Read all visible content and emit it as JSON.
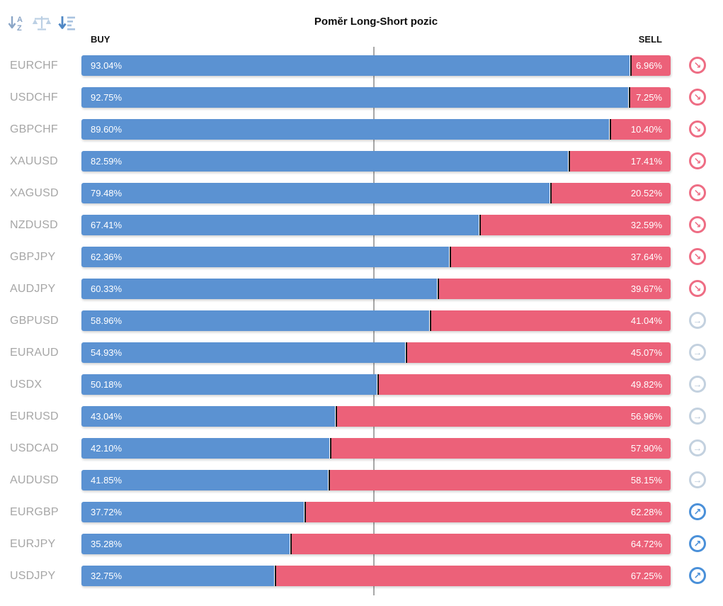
{
  "title": "Pomĕr Long-Short pozic",
  "columns": {
    "buy": "BUY",
    "sell": "SELL"
  },
  "toolbar": {
    "icons": [
      "sort-alphabetical-icon",
      "balance-scale-icon",
      "sort-by-value-icon"
    ]
  },
  "trend_arrows": {
    "down": "↘",
    "flat": "→",
    "up": "↗"
  },
  "colors": {
    "buy_bar": "#5b92d2",
    "sell_bar": "#ec6179",
    "trend_down_icon": "#ee6d84",
    "trend_flat_icon": "#c3d1df",
    "trend_up_icon": "#4a90d9",
    "pair_label": "#a6a6a6",
    "midline": "#a8a8a8"
  },
  "rows": [
    {
      "pair": "EURCHF",
      "buy": 93.04,
      "sell": 6.96,
      "buy_label": "93.04%",
      "sell_label": "6.96%",
      "trend": "down"
    },
    {
      "pair": "USDCHF",
      "buy": 92.75,
      "sell": 7.25,
      "buy_label": "92.75%",
      "sell_label": "7.25%",
      "trend": "down"
    },
    {
      "pair": "GBPCHF",
      "buy": 89.6,
      "sell": 10.4,
      "buy_label": "89.60%",
      "sell_label": "10.40%",
      "trend": "down"
    },
    {
      "pair": "XAUUSD",
      "buy": 82.59,
      "sell": 17.41,
      "buy_label": "82.59%",
      "sell_label": "17.41%",
      "trend": "down"
    },
    {
      "pair": "XAGUSD",
      "buy": 79.48,
      "sell": 20.52,
      "buy_label": "79.48%",
      "sell_label": "20.52%",
      "trend": "down"
    },
    {
      "pair": "NZDUSD",
      "buy": 67.41,
      "sell": 32.59,
      "buy_label": "67.41%",
      "sell_label": "32.59%",
      "trend": "down"
    },
    {
      "pair": "GBPJPY",
      "buy": 62.36,
      "sell": 37.64,
      "buy_label": "62.36%",
      "sell_label": "37.64%",
      "trend": "down"
    },
    {
      "pair": "AUDJPY",
      "buy": 60.33,
      "sell": 39.67,
      "buy_label": "60.33%",
      "sell_label": "39.67%",
      "trend": "down"
    },
    {
      "pair": "GBPUSD",
      "buy": 58.96,
      "sell": 41.04,
      "buy_label": "58.96%",
      "sell_label": "41.04%",
      "trend": "flat"
    },
    {
      "pair": "EURAUD",
      "buy": 54.93,
      "sell": 45.07,
      "buy_label": "54.93%",
      "sell_label": "45.07%",
      "trend": "flat"
    },
    {
      "pair": "USDX",
      "buy": 50.18,
      "sell": 49.82,
      "buy_label": "50.18%",
      "sell_label": "49.82%",
      "trend": "flat"
    },
    {
      "pair": "EURUSD",
      "buy": 43.04,
      "sell": 56.96,
      "buy_label": "43.04%",
      "sell_label": "56.96%",
      "trend": "flat"
    },
    {
      "pair": "USDCAD",
      "buy": 42.1,
      "sell": 57.9,
      "buy_label": "42.10%",
      "sell_label": "57.90%",
      "trend": "flat"
    },
    {
      "pair": "AUDUSD",
      "buy": 41.85,
      "sell": 58.15,
      "buy_label": "41.85%",
      "sell_label": "58.15%",
      "trend": "flat"
    },
    {
      "pair": "EURGBP",
      "buy": 37.72,
      "sell": 62.28,
      "buy_label": "37.72%",
      "sell_label": "62.28%",
      "trend": "up"
    },
    {
      "pair": "EURJPY",
      "buy": 35.28,
      "sell": 64.72,
      "buy_label": "35.28%",
      "sell_label": "64.72%",
      "trend": "up"
    },
    {
      "pair": "USDJPY",
      "buy": 32.75,
      "sell": 67.25,
      "buy_label": "32.75%",
      "sell_label": "67.25%",
      "trend": "up"
    }
  ],
  "chart_data": {
    "type": "bar",
    "subtype": "horizontal-stacked",
    "title": "Pomĕr Long-Short pozic",
    "categories": [
      "EURCHF",
      "USDCHF",
      "GBPCHF",
      "XAUUSD",
      "XAGUSD",
      "NZDUSD",
      "GBPJPY",
      "AUDJPY",
      "GBPUSD",
      "EURAUD",
      "USDX",
      "EURUSD",
      "USDCAD",
      "AUDUSD",
      "EURGBP",
      "EURJPY",
      "USDJPY"
    ],
    "series": [
      {
        "name": "BUY",
        "color": "#5b92d2",
        "values": [
          93.04,
          92.75,
          89.6,
          82.59,
          79.48,
          67.41,
          62.36,
          60.33,
          58.96,
          54.93,
          50.18,
          43.04,
          42.1,
          41.85,
          37.72,
          35.28,
          32.75
        ]
      },
      {
        "name": "SELL",
        "color": "#ec6179",
        "values": [
          6.96,
          7.25,
          10.4,
          17.41,
          20.52,
          32.59,
          37.64,
          39.67,
          41.04,
          45.07,
          49.82,
          56.96,
          57.9,
          58.15,
          62.28,
          64.72,
          67.25
        ]
      }
    ],
    "xlim": [
      0,
      100
    ],
    "midline_at": 50,
    "grid": "single-vertical-midline",
    "legend_position": "column-headers-top",
    "trend_markers": [
      "down",
      "down",
      "down",
      "down",
      "down",
      "down",
      "down",
      "down",
      "flat",
      "flat",
      "flat",
      "flat",
      "flat",
      "flat",
      "up",
      "up",
      "up"
    ]
  }
}
